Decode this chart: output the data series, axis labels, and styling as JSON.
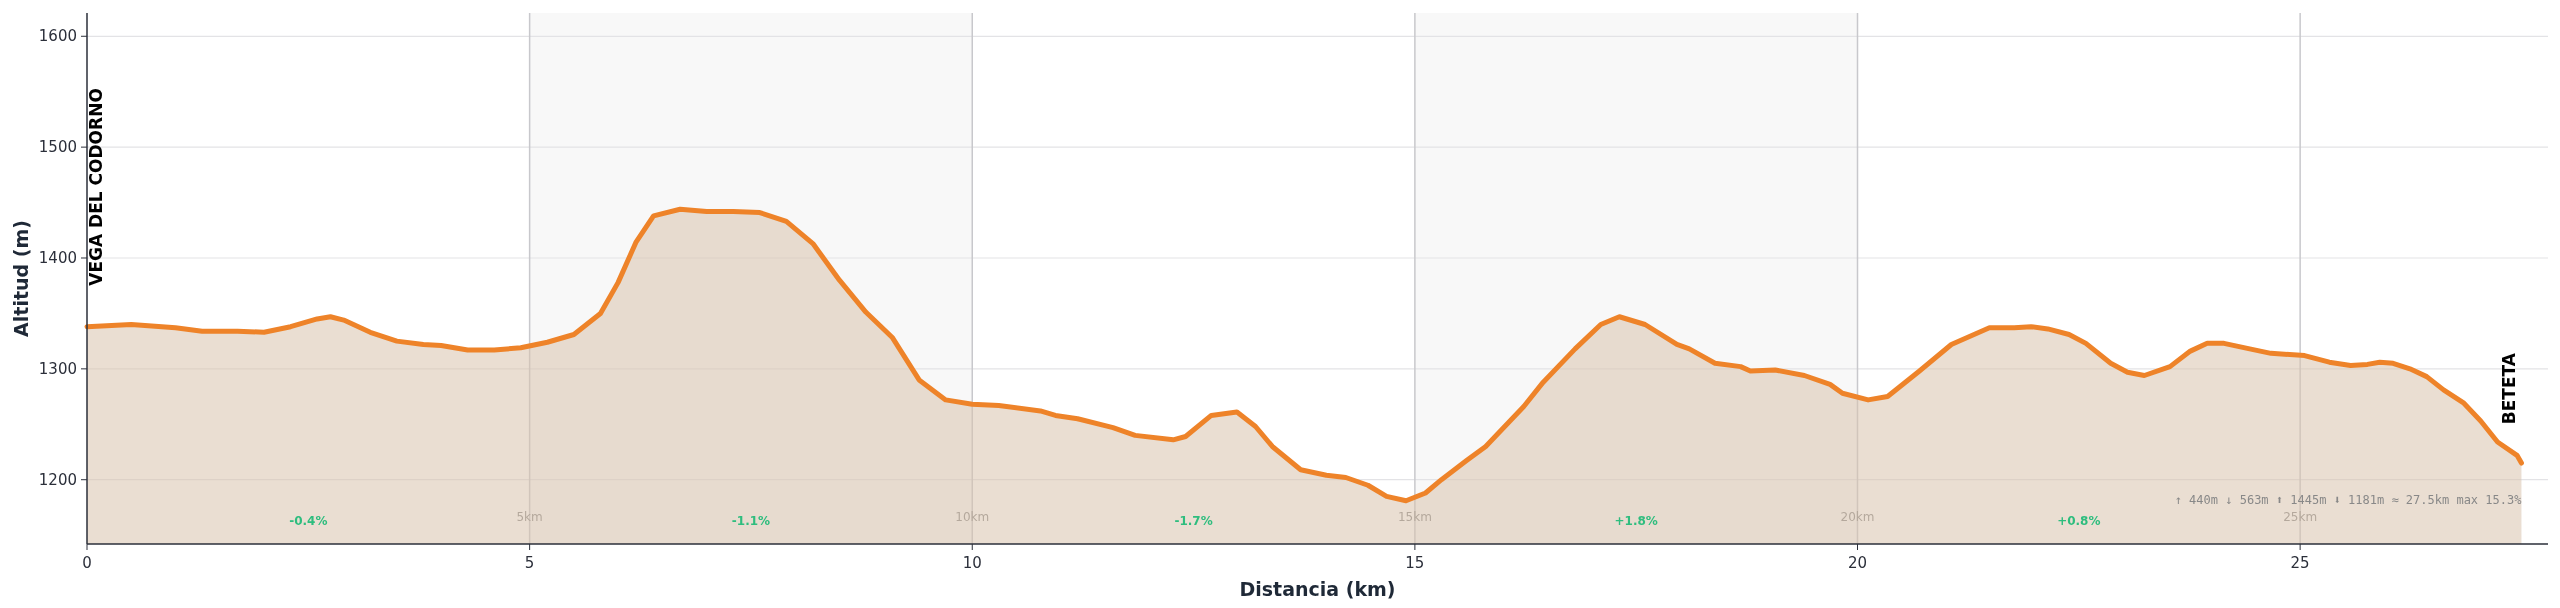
{
  "chart_data": {
    "type": "area",
    "xlabel": "Distancia (km)",
    "ylabel": "Altitud (m)",
    "xlim": [
      0,
      27.8
    ],
    "ylim": [
      1142,
      1621
    ],
    "xticks": [
      0,
      5,
      10,
      15,
      20,
      25
    ],
    "yticks": [
      1200,
      1300,
      1400,
      1500,
      1600
    ],
    "grid": "y",
    "series": [
      {
        "color": "#ee8329",
        "x": [
          0,
          0.5,
          1.0,
          1.3,
          1.7,
          2.0,
          2.3,
          2.6,
          2.75,
          2.9,
          3.2,
          3.5,
          3.8,
          4.0,
          4.3,
          4.6,
          4.9,
          5.2,
          5.5,
          5.8,
          6.0,
          6.2,
          6.4,
          6.7,
          7.0,
          7.3,
          7.6,
          7.9,
          8.2,
          8.5,
          8.8,
          9.1,
          9.4,
          9.7,
          10.0,
          10.3,
          10.77,
          10.94,
          11.19,
          11.59,
          11.84,
          12.27,
          12.41,
          12.7,
          12.99,
          13.2,
          13.39,
          13.71,
          14.0,
          14.22,
          14.47,
          14.68,
          14.9,
          15.12,
          15.3,
          15.58,
          15.8,
          16.23,
          16.45,
          16.81,
          17.1,
          17.31,
          17.6,
          17.96,
          18.1,
          18.39,
          18.68,
          18.79,
          19.07,
          19.4,
          19.69,
          19.83,
          20.12,
          20.34,
          20.7,
          21.06,
          21.49,
          21.77,
          21.96,
          22.15,
          22.39,
          22.58,
          22.86,
          23.05,
          23.24,
          23.53,
          23.76,
          23.95,
          24.14,
          24.43,
          24.67,
          25.05,
          25.33,
          25.57,
          25.76,
          25.9,
          26.05,
          26.24,
          26.43,
          26.62,
          26.85,
          27.04,
          27.23,
          27.45,
          27.5
        ],
        "values": [
          1338,
          1340,
          1337,
          1334,
          1334,
          1333,
          1338,
          1345,
          1347,
          1344,
          1333,
          1325,
          1322,
          1321,
          1317,
          1317,
          1319,
          1324,
          1331,
          1350,
          1378,
          1414,
          1438,
          1444,
          1442,
          1442,
          1441,
          1433,
          1413,
          1380,
          1351,
          1328,
          1290,
          1272,
          1268,
          1267,
          1262,
          1258,
          1255,
          1247,
          1240,
          1236,
          1239,
          1258,
          1261,
          1248,
          1230,
          1209,
          1204,
          1202,
          1195,
          1185,
          1181,
          1188,
          1200,
          1217,
          1230,
          1266,
          1288,
          1318,
          1340,
          1347,
          1340,
          1322,
          1318,
          1305,
          1302,
          1298,
          1299,
          1294,
          1286,
          1278,
          1272,
          1275,
          1298,
          1322,
          1337,
          1337,
          1338,
          1336,
          1331,
          1323,
          1305,
          1297,
          1294,
          1302,
          1316,
          1323,
          1323,
          1318,
          1314,
          1312,
          1306,
          1303,
          1304,
          1306,
          1305,
          1300,
          1293,
          1281,
          1269,
          1253,
          1234,
          1222,
          1215
        ]
      }
    ],
    "bands": [
      {
        "axis": "x",
        "from": 5,
        "to": 10,
        "color": "#f8f8f8"
      },
      {
        "axis": "x",
        "from": 15,
        "to": 20,
        "color": "#f8f8f8"
      }
    ],
    "ref_lines": [
      {
        "axis": "x",
        "value": 5,
        "label": "5km"
      },
      {
        "axis": "x",
        "value": 10,
        "label": "10km"
      },
      {
        "axis": "x",
        "value": 15,
        "label": "15km"
      },
      {
        "axis": "x",
        "value": 20,
        "label": "20km"
      },
      {
        "axis": "x",
        "value": 25,
        "label": "25km"
      }
    ],
    "annotations": [
      "VEGA DEL CODORNO",
      "BETETA",
      "-0.4%",
      "-1.1%",
      "-1.7%",
      "+1.8%",
      "+0.8%",
      "↑ 440m  ↓ 563m  ⬆ 1445m  ⬇ 1181m  ≈ 27.5km  max 15.3%"
    ]
  }
}
